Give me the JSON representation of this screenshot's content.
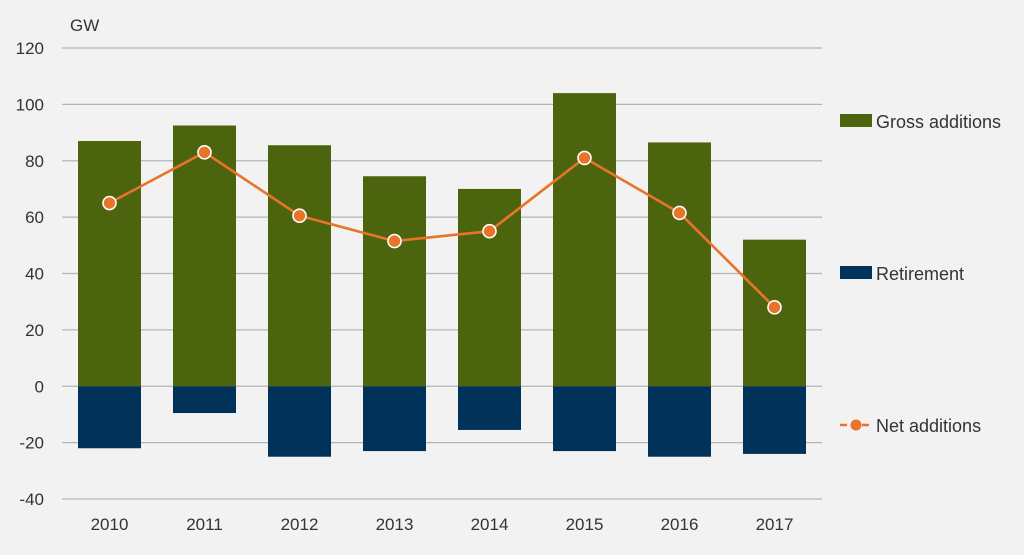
{
  "chart_data": {
    "type": "bar",
    "unit_label": "GW",
    "categories": [
      "2010",
      "2011",
      "2012",
      "2013",
      "2014",
      "2015",
      "2016",
      "2017"
    ],
    "ylim": [
      -40,
      120
    ],
    "yticks": [
      -40,
      -20,
      0,
      20,
      40,
      60,
      80,
      100,
      120
    ],
    "grid": true,
    "legend_position": "right",
    "series": [
      {
        "name": "Gross additions",
        "kind": "bar",
        "color": "#4d640f",
        "values": [
          87,
          92.5,
          85.5,
          74.5,
          70,
          104,
          86.5,
          52
        ]
      },
      {
        "name": "Retirement",
        "kind": "bar",
        "color": "#00325a",
        "values": [
          -22,
          -9.5,
          -25,
          -23,
          -15.5,
          -23,
          -25,
          -24
        ]
      },
      {
        "name": "Net additions",
        "kind": "line",
        "color": "#e8742a",
        "values": [
          65,
          83,
          60.5,
          51.5,
          55,
          81,
          61.5,
          28
        ]
      }
    ]
  }
}
